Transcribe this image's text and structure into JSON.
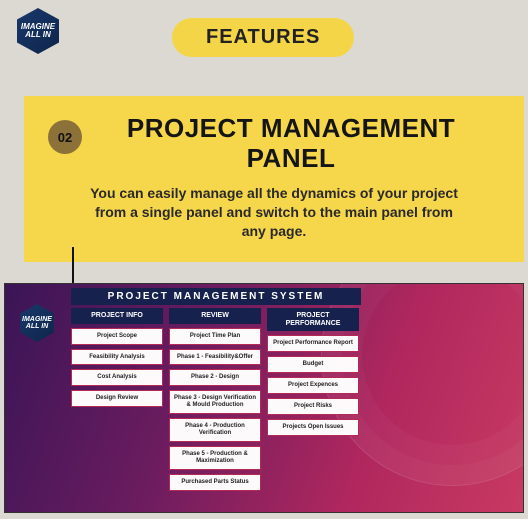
{
  "logo": {
    "line1": "IMAGINE",
    "line2": "ALL IN"
  },
  "features_label": "FEATURES",
  "section": {
    "number": "02",
    "title": "PROJECT MANAGEMENT PANEL",
    "description": "You can easily manage all the dynamics of your project from a single panel and switch to the main panel from any page."
  },
  "app": {
    "title": "PROJECT  MANAGEMENT  SYSTEM",
    "col1": {
      "header": "PROJECT INFO",
      "items": [
        "Project Scope",
        "Feasibility Analysis",
        "Cost Analysis",
        "Design Review"
      ]
    },
    "col2": {
      "header": "REVIEW",
      "items": [
        "Project Time Plan",
        "Phase 1 - Feasibility&Offer",
        "Phase 2 - Design",
        "Phase 3 - Design Verification & Mould Production",
        "Phase 4 - Production Verification",
        "Phase 5 - Production & Maximization",
        "Purchased Parts Status"
      ]
    },
    "col3": {
      "header": "PROJECT PERFORMANCE",
      "items": [
        "Project Performance Report",
        "Budget",
        "Project Expences",
        "Project Risks",
        "Projects Open Issues"
      ]
    }
  },
  "colors": {
    "page_bg": "#dcd9d2",
    "pill_bg": "#f4d548",
    "panel_bg": "#f6d64a",
    "num_circle": "#8c7238",
    "app_header": "#16214d",
    "cell_border": "#b42a55"
  }
}
